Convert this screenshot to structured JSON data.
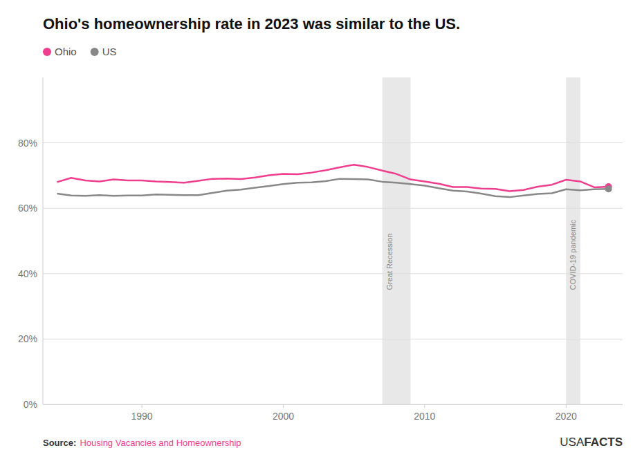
{
  "chart_data": {
    "type": "line",
    "title": "Ohio's homeownership rate in 2023 was similar to the US.",
    "x": [
      1984,
      1985,
      1986,
      1987,
      1988,
      1989,
      1990,
      1991,
      1992,
      1993,
      1994,
      1995,
      1996,
      1997,
      1998,
      1999,
      2000,
      2001,
      2002,
      2003,
      2004,
      2005,
      2006,
      2007,
      2008,
      2009,
      2010,
      2011,
      2012,
      2013,
      2014,
      2015,
      2016,
      2017,
      2018,
      2019,
      2020,
      2021,
      2022,
      2023
    ],
    "series": [
      {
        "name": "Ohio",
        "color": "#f03e8e",
        "values": [
          68.0,
          69.3,
          68.5,
          68.2,
          68.8,
          68.5,
          68.5,
          68.2,
          68.0,
          67.8,
          68.4,
          69.0,
          69.1,
          68.9,
          69.4,
          70.1,
          70.5,
          70.4,
          70.9,
          71.6,
          72.5,
          73.3,
          72.6,
          71.5,
          70.5,
          68.8,
          68.2,
          67.5,
          66.5,
          66.5,
          66.0,
          65.9,
          65.2,
          65.6,
          66.6,
          67.2,
          68.7,
          68.2,
          66.4,
          66.6
        ]
      },
      {
        "name": "US",
        "color": "#888888",
        "values": [
          64.5,
          63.9,
          63.8,
          64.0,
          63.8,
          63.9,
          63.9,
          64.2,
          64.1,
          64.0,
          64.0,
          64.7,
          65.4,
          65.7,
          66.3,
          66.8,
          67.4,
          67.8,
          67.9,
          68.3,
          69.0,
          68.9,
          68.8,
          68.1,
          67.8,
          67.4,
          66.9,
          66.1,
          65.4,
          65.1,
          64.5,
          63.7,
          63.4,
          63.9,
          64.4,
          64.6,
          65.8,
          65.5,
          65.8,
          65.9
        ]
      }
    ],
    "xlim": [
      1983,
      2024
    ],
    "xticks": [
      1990,
      2000,
      2010,
      2020
    ],
    "ylim": [
      0,
      100
    ],
    "yticks": [
      {
        "value": 0,
        "label": "0%"
      },
      {
        "value": 20,
        "label": "20%"
      },
      {
        "value": 40,
        "label": "40%"
      },
      {
        "value": 60,
        "label": "60%"
      },
      {
        "value": 80,
        "label": "80%"
      }
    ],
    "grid": true,
    "legend": "top",
    "annotations": [
      {
        "label": "Great Recession",
        "x": [
          2007,
          2009
        ],
        "color": "#e8e8e8"
      },
      {
        "label": "COVID-19 pandemic",
        "x": [
          2020,
          2021
        ],
        "color": "#e8e8e8"
      }
    ],
    "source_label": "Source:",
    "source": "Housing Vacancies and Homeownership",
    "branding": [
      "USA",
      "FACTS"
    ]
  }
}
